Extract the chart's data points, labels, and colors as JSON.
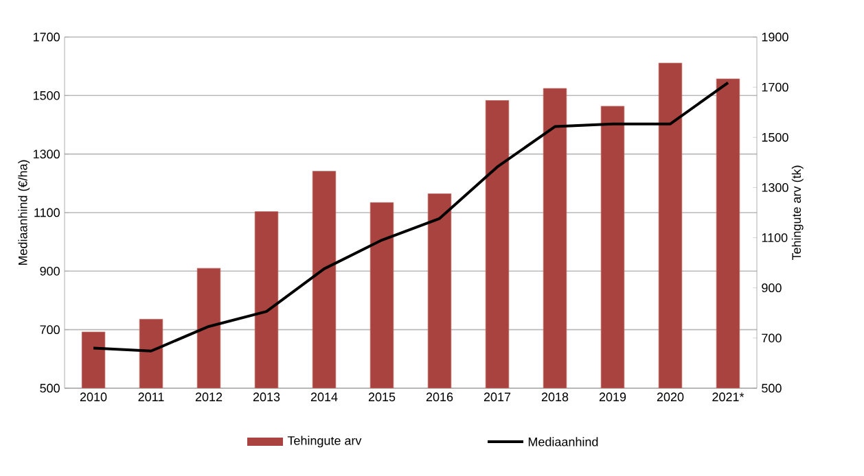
{
  "chart_data": {
    "type": "bar",
    "categories": [
      "2010",
      "2011",
      "2012",
      "2013",
      "2014",
      "2015",
      "2016",
      "2017",
      "2018",
      "2019",
      "2020",
      "2021*"
    ],
    "series": [
      {
        "name": "Tehingute arv",
        "color": "#a9433f",
        "axis": "y2",
        "values": [
          724,
          775,
          978,
          1204,
          1365,
          1240,
          1275,
          1647,
          1695,
          1624,
          1796,
          1733
        ]
      },
      {
        "name": "Mediaanhind",
        "type": "line",
        "color": "#000000",
        "axis": "y",
        "values": [
          637,
          627,
          711,
          762,
          908,
          1006,
          1080,
          1256,
          1394,
          1403,
          1403,
          1544
        ]
      }
    ],
    "ylabel": "Mediaanhind (€/ha)",
    "y2label": "Tehingute arv (tk)",
    "ylim": [
      500,
      1700
    ],
    "yticks": [
      500,
      700,
      900,
      1100,
      1300,
      1500,
      1700
    ],
    "y2lim": [
      500,
      1900
    ],
    "y2ticks": [
      500,
      700,
      900,
      1100,
      1300,
      1500,
      1700,
      1900
    ],
    "grid": "y",
    "legend": "bottom",
    "marker": "none",
    "line_style": "solid"
  }
}
